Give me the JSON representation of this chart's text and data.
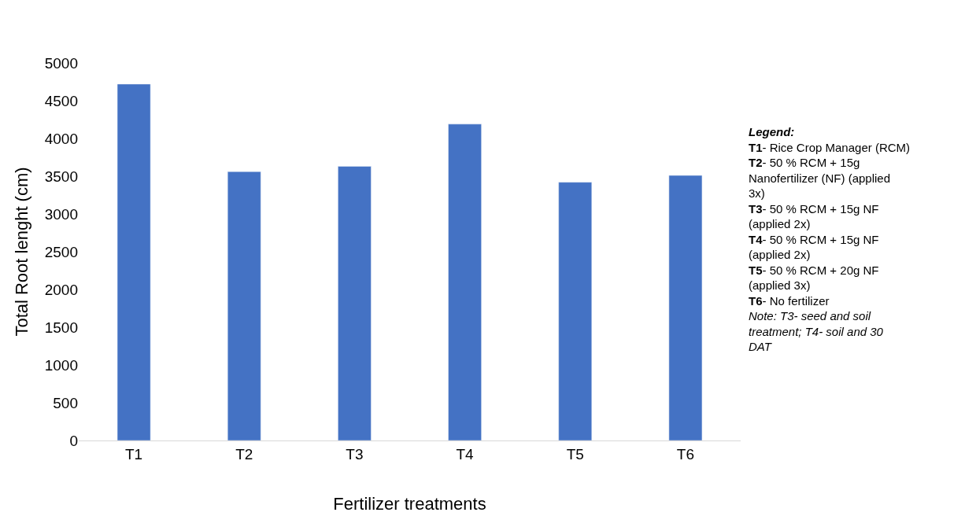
{
  "chart_data": {
    "type": "bar",
    "xlabel": "Fertilizer treatments",
    "ylabel": "Total Root lenght (cm)",
    "categories": [
      "T1",
      "T2",
      "T3",
      "T4",
      "T5",
      "T6"
    ],
    "values": [
      4720,
      3560,
      3630,
      4190,
      3420,
      3510
    ],
    "color": "#4472c4",
    "ylim": [
      0,
      5000
    ],
    "yticks": [
      0,
      500,
      1000,
      1500,
      2000,
      2500,
      3000,
      3500,
      4000,
      4500,
      5000
    ],
    "annotations": [
      "Legend:",
      "T1- Rice Crop Manager (RCM)",
      "T2- 50 % RCM + 15g Nanofertilizer (NF) (applied 3x)",
      "T3- 50 % RCM + 15g NF (applied 2x)",
      "T4- 50 % RCM + 15g NF (applied 2x)",
      "T5- 50 % RCM + 20g NF (applied 3x)",
      "T6- No fertilizer",
      "Note: T3- seed and soil treatment; T4- soil and 30 DAT"
    ]
  }
}
